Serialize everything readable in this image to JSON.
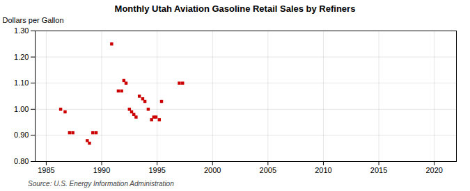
{
  "chart_data": {
    "type": "scatter",
    "title": "Monthly Utah Aviation Gasoline Retail Sales by Refiners",
    "ylabel": "Dollars per Gallon",
    "annotation": "Source: U.S. Energy Information Administration",
    "x": [
      1986.3,
      1986.7,
      1987.1,
      1987.4,
      1988.7,
      1988.9,
      1989.2,
      1989.5,
      1990.9,
      1991.5,
      1991.8,
      1992.0,
      1992.2,
      1992.5,
      1992.7,
      1992.9,
      1993.1,
      1993.4,
      1993.7,
      1993.9,
      1994.2,
      1994.5,
      1994.7,
      1994.9,
      1995.2,
      1995.4,
      1997.0,
      1997.3
    ],
    "values": [
      1.0,
      0.99,
      0.91,
      0.91,
      0.88,
      0.87,
      0.91,
      0.91,
      1.25,
      1.07,
      1.07,
      1.11,
      1.1,
      1.0,
      0.99,
      0.98,
      0.97,
      1.05,
      1.04,
      1.03,
      1.0,
      0.96,
      0.97,
      0.97,
      0.96,
      1.03,
      1.1,
      1.1
    ],
    "color": "#cc0000",
    "marker": "square",
    "xlim": [
      1984,
      2022
    ],
    "ylim": [
      0.8,
      1.3
    ],
    "xticks": [
      1985,
      1990,
      1995,
      2000,
      2005,
      2010,
      2015,
      2020
    ],
    "yticks": [
      {
        "value": 0.8,
        "label": "0.80"
      },
      {
        "value": 0.9,
        "label": "0.90"
      },
      {
        "value": 1.0,
        "label": "1.00"
      },
      {
        "value": 1.1,
        "label": "1.10"
      },
      {
        "value": 1.2,
        "label": "1.20"
      },
      {
        "value": 1.3,
        "label": "1.30"
      }
    ],
    "grid": true
  }
}
